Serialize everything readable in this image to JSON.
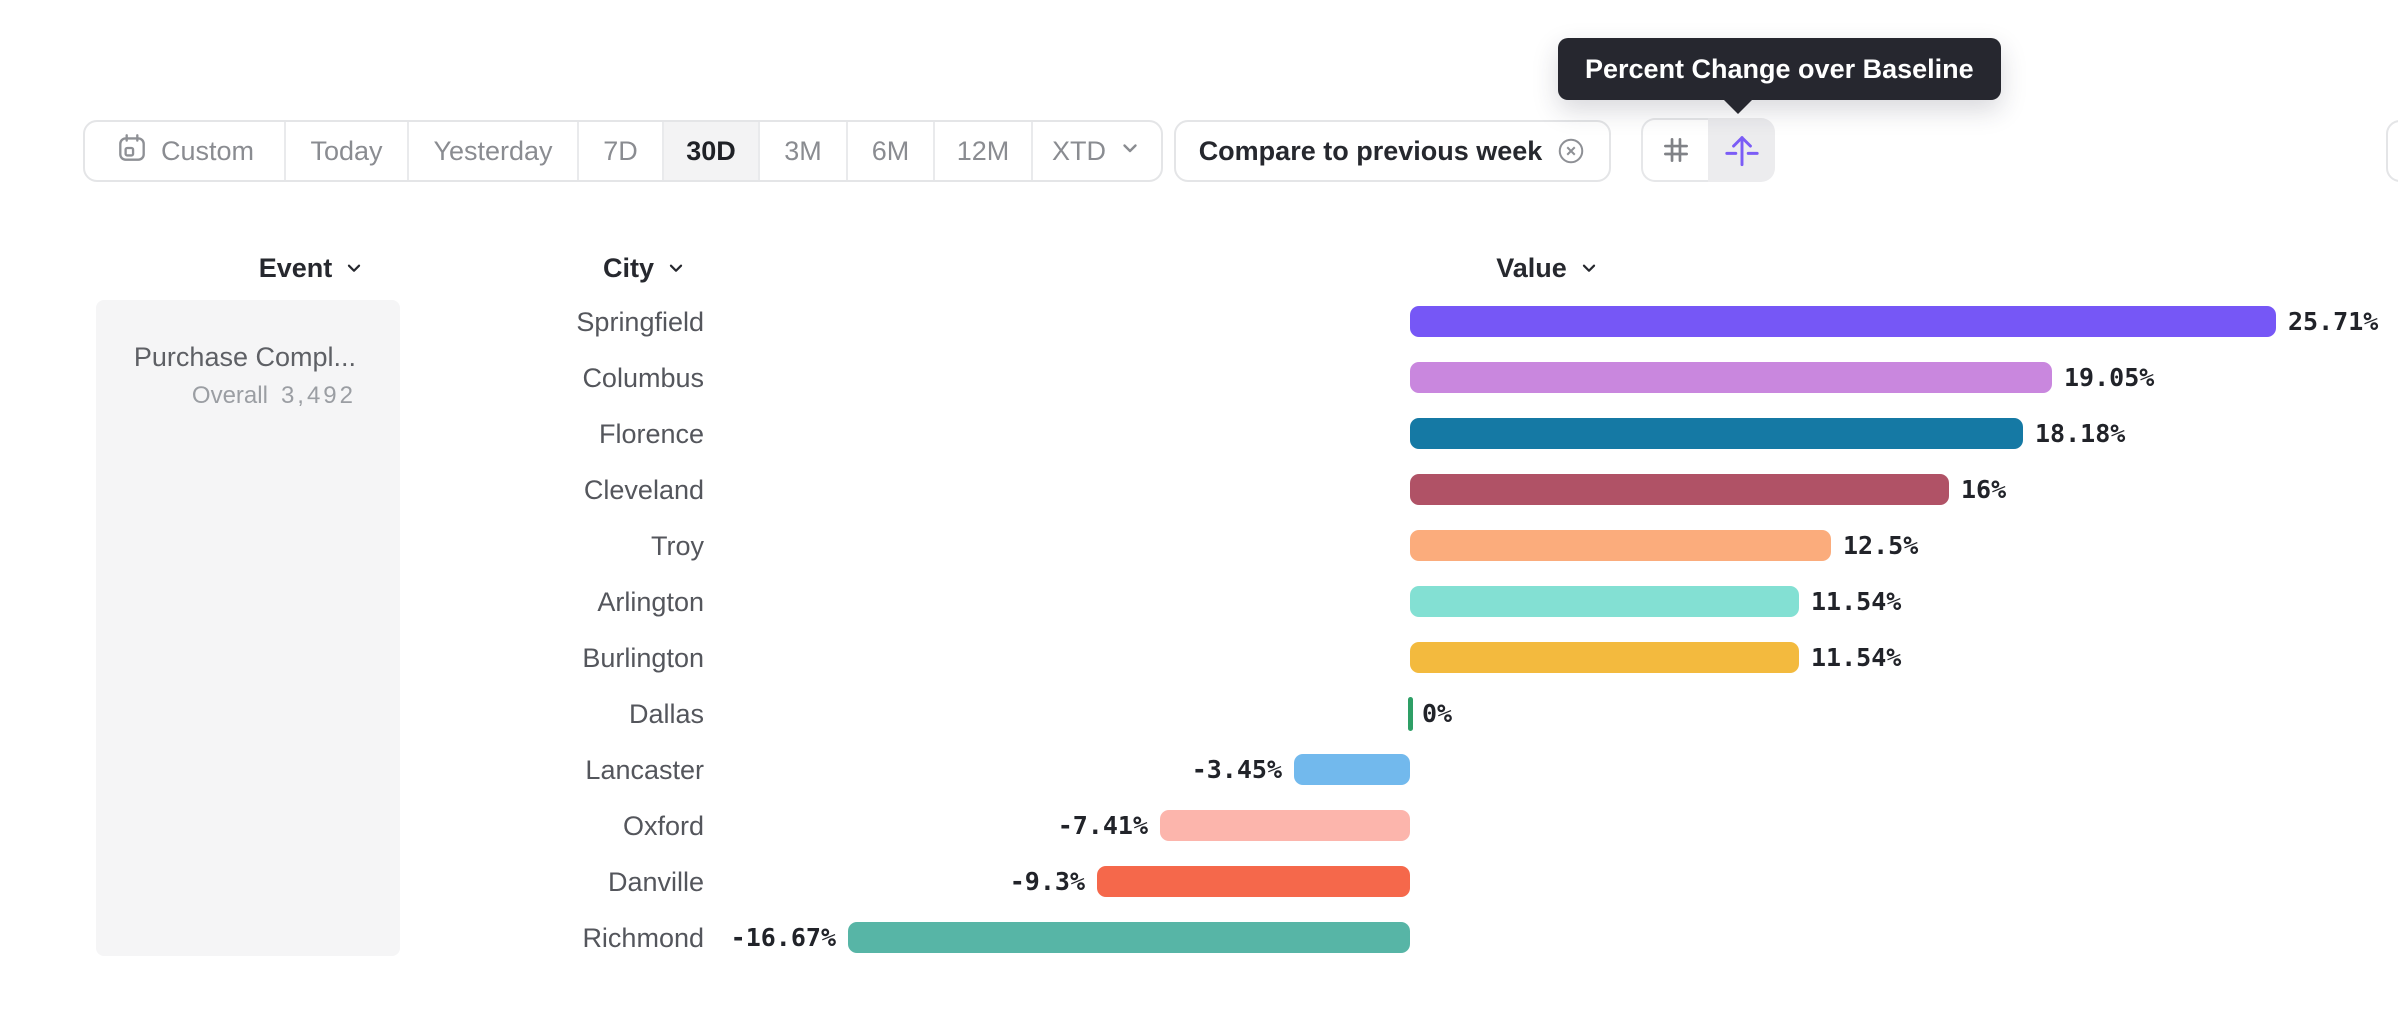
{
  "tooltip": {
    "text": "Percent Change over Baseline"
  },
  "toolbar": {
    "date_ranges": [
      {
        "label": "Custom",
        "icon": "calendar-icon",
        "selected": false
      },
      {
        "label": "Today",
        "selected": false
      },
      {
        "label": "Yesterday",
        "selected": false
      },
      {
        "label": "7D",
        "selected": false
      },
      {
        "label": "30D",
        "selected": true
      },
      {
        "label": "3M",
        "selected": false
      },
      {
        "label": "6M",
        "selected": false
      },
      {
        "label": "12M",
        "selected": false
      },
      {
        "label": "XTD",
        "selected": false,
        "has_chevron": true
      }
    ],
    "compare_chip": {
      "label": "Compare to previous week",
      "icon": "circle-x-icon"
    },
    "view_toggle": [
      {
        "name": "number-format",
        "icon": "hash-icon",
        "selected": false
      },
      {
        "name": "percent-change-baseline",
        "icon": "baseline-arrow-icon",
        "selected": true
      }
    ]
  },
  "table": {
    "columns": [
      {
        "label": "Event"
      },
      {
        "label": "City"
      },
      {
        "label": "Value"
      }
    ],
    "event": {
      "name": "Purchase Compl...",
      "overall_label": "Overall",
      "overall_value": "3,492"
    }
  },
  "chart_data": {
    "type": "bar",
    "orientation": "horizontal",
    "title": "",
    "xlabel": "Value",
    "ylabel": "City",
    "unit": "percent",
    "baseline": 0,
    "xlim": [
      -16.67,
      25.71
    ],
    "sort": "descending",
    "categories": [
      "Springfield",
      "Columbus",
      "Florence",
      "Cleveland",
      "Troy",
      "Arlington",
      "Burlington",
      "Dallas",
      "Lancaster",
      "Oxford",
      "Danville",
      "Richmond"
    ],
    "values": [
      25.71,
      19.05,
      18.18,
      16,
      12.5,
      11.54,
      11.54,
      0,
      -3.45,
      -7.41,
      -9.3,
      -16.67
    ],
    "value_labels": [
      "25.71%",
      "19.05%",
      "18.18%",
      "16%",
      "12.5%",
      "11.54%",
      "11.54%",
      "0%",
      "-3.45%",
      "-7.41%",
      "-9.3%",
      "-16.67%"
    ],
    "bar_colors": [
      "#7657F6",
      "#C987DE",
      "#1579A4",
      "#B05266",
      "#FBAC7C",
      "#83E0D3",
      "#F3BA3E",
      "#2E9F66",
      "#72B9ED",
      "#FCB5AC",
      "#F5684B",
      "#57B5A6"
    ]
  },
  "colors": {
    "accent": "#7B5CF6",
    "tooltip_bg": "#26272F",
    "border": "#E4E5E7",
    "selected_segment_bg": "#F3F3F4",
    "panel_bg": "#F5F5F6",
    "text_dark": "#26282E",
    "text_gray": "#8A8C91",
    "city_text": "#54565C",
    "zero_tick_green": "#2E9F66"
  }
}
